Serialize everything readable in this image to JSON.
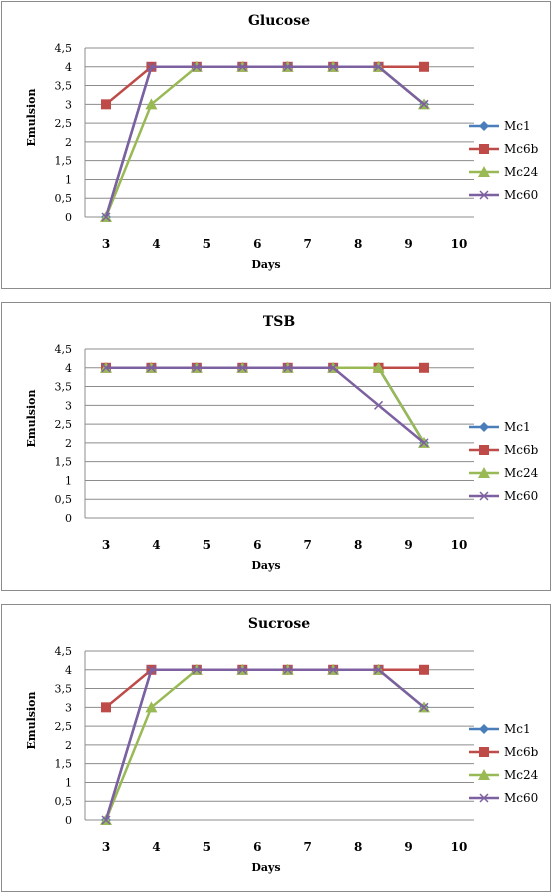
{
  "chart_data": [
    {
      "type": "line",
      "title": "Glucose",
      "xlabel": "Days",
      "ylabel": "Emulsion",
      "categories": [
        "3",
        "4",
        "5",
        "6",
        "7",
        "8",
        "9",
        "10"
      ],
      "yticks": [
        "0",
        "0,5",
        "1",
        "1,5",
        "2",
        "2,5",
        "3",
        "3,5",
        "4",
        "4,5"
      ],
      "ylim": [
        0,
        4.5
      ],
      "grid": true,
      "legend_position": "right",
      "series": [
        {
          "name": "Mc1",
          "color": "#4a7ebb",
          "marker": "diamond",
          "values": [
            0,
            4,
            4,
            4,
            4,
            4,
            4,
            3
          ]
        },
        {
          "name": "Mc6b",
          "color": "#be4b48",
          "marker": "square",
          "values": [
            3,
            4,
            4,
            4,
            4,
            4,
            4,
            4
          ]
        },
        {
          "name": "Mc24",
          "color": "#98b954",
          "marker": "triangle",
          "values": [
            0,
            3,
            4,
            4,
            4,
            4,
            4,
            3
          ]
        },
        {
          "name": "Mc60",
          "color": "#7d60a0",
          "marker": "x",
          "values": [
            0,
            4,
            4,
            4,
            4,
            4,
            4,
            3
          ]
        }
      ]
    },
    {
      "type": "line",
      "title": "TSB",
      "xlabel": "Days",
      "ylabel": "Emulsion",
      "categories": [
        "3",
        "4",
        "5",
        "6",
        "7",
        "8",
        "9",
        "10"
      ],
      "yticks": [
        "0",
        "0,5",
        "1",
        "1,5",
        "2",
        "2,5",
        "3",
        "3,5",
        "4",
        "4,5"
      ],
      "ylim": [
        0,
        4.5
      ],
      "grid": true,
      "legend_position": "right",
      "series": [
        {
          "name": "Mc1",
          "color": "#4a7ebb",
          "marker": "diamond",
          "values": [
            4,
            4,
            4,
            4,
            4,
            4,
            4,
            2
          ]
        },
        {
          "name": "Mc6b",
          "color": "#be4b48",
          "marker": "square",
          "values": [
            4,
            4,
            4,
            4,
            4,
            4,
            4,
            4
          ]
        },
        {
          "name": "Mc24",
          "color": "#98b954",
          "marker": "triangle",
          "values": [
            4,
            4,
            4,
            4,
            4,
            4,
            4,
            2
          ]
        },
        {
          "name": "Mc60",
          "color": "#7d60a0",
          "marker": "x",
          "values": [
            4,
            4,
            4,
            4,
            4,
            4,
            3,
            2
          ]
        }
      ]
    },
    {
      "type": "line",
      "title": "Sucrose",
      "xlabel": "Days",
      "ylabel": "Emulsion",
      "categories": [
        "3",
        "4",
        "5",
        "6",
        "7",
        "8",
        "9",
        "10"
      ],
      "yticks": [
        "0",
        "0,5",
        "1",
        "1,5",
        "2",
        "2,5",
        "3",
        "3,5",
        "4",
        "4,5"
      ],
      "ylim": [
        0,
        4.5
      ],
      "grid": true,
      "legend_position": "right",
      "series": [
        {
          "name": "Mc1",
          "color": "#4a7ebb",
          "marker": "diamond",
          "values": [
            0,
            4,
            4,
            4,
            4,
            4,
            4,
            3
          ]
        },
        {
          "name": "Mc6b",
          "color": "#be4b48",
          "marker": "square",
          "values": [
            3,
            4,
            4,
            4,
            4,
            4,
            4,
            4
          ]
        },
        {
          "name": "Mc24",
          "color": "#98b954",
          "marker": "triangle",
          "values": [
            0,
            3,
            4,
            4,
            4,
            4,
            4,
            3
          ]
        },
        {
          "name": "Mc60",
          "color": "#7d60a0",
          "marker": "x",
          "values": [
            0,
            4,
            4,
            4,
            4,
            4,
            4,
            3
          ]
        }
      ]
    }
  ]
}
